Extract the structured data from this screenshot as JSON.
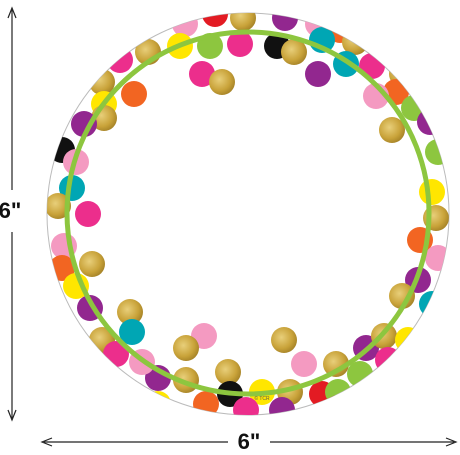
{
  "dimensions": {
    "height_label": "6\"",
    "width_label": "6\""
  },
  "credit": "© TCR"
}
